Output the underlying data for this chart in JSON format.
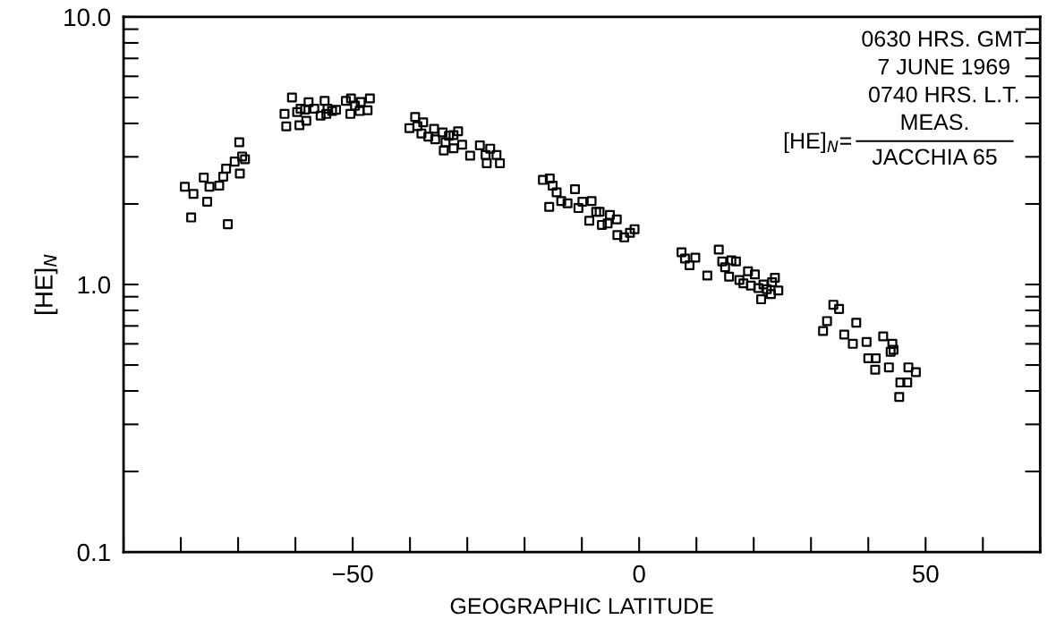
{
  "chart_data": {
    "type": "scatter",
    "xlabel": "GEOGRAPHIC LATITUDE",
    "ylabel": "[HE]$_{N}$",
    "annotations": [
      "0630 HRS. GMT",
      "7 JUNE 1969",
      "0740 HRS. L.T.",
      "[HE]$_{N}$=",
      "MEAS.",
      "JACCHIA 65"
    ],
    "log": "y",
    "grid": false,
    "marker": "square",
    "xlim": [
      -90,
      70
    ],
    "xticks": [
      {
        "value": -50,
        "label": "−50"
      },
      0,
      50
    ],
    "ylim": [
      0.1,
      10
    ],
    "yticks": [
      0.1,
      {
        "value": 1,
        "label": "1.0"
      },
      {
        "value": 10,
        "label": "10.0"
      }
    ],
    "series": [
      {
        "color": "#000000",
        "x": [
          -79.3,
          -77.8,
          -78.2,
          -75.4,
          -76.0,
          -75.0,
          -73.3,
          -72.6,
          -72.1,
          -71.8,
          -70.6,
          -69.7,
          -69.8,
          -69.3,
          -68.8,
          -61.9,
          -61.6,
          -60.6,
          -59.7,
          -59.3,
          -59.1,
          -58.1,
          -58.3,
          -57.7,
          -56.7,
          -55.6,
          -54.9,
          -54.6,
          -54.4,
          -53.6,
          -52.9,
          -51.2,
          -50.3,
          -50.4,
          -49.6,
          -48.6,
          -48.8,
          -47.4,
          -47.0,
          -39.1,
          -40.1,
          -38.7,
          -37.7,
          -38.0,
          -36.8,
          -35.8,
          -35.6,
          -34.3,
          -33.8,
          -34.1,
          -33.2,
          -32.4,
          -32.4,
          -31.6,
          -30.9,
          -29.5,
          -27.8,
          -26.8,
          -26.0,
          -26.6,
          -24.9,
          -24.3,
          -16.8,
          -15.6,
          -15.1,
          -14.4,
          -15.7,
          -13.6,
          -12.5,
          -11.2,
          -10.6,
          -9.9,
          -8.3,
          -8.7,
          -7.5,
          -6.9,
          -6.5,
          -5.5,
          -5.1,
          -3.9,
          -3.8,
          -2.6,
          -1.6,
          -0.8,
          7.4,
          8.0,
          8.8,
          9.8,
          11.9,
          13.9,
          14.5,
          15.0,
          16.1,
          16.9,
          15.7,
          17.5,
          18.2,
          19.0,
          20.2,
          19.5,
          20.8,
          21.7,
          21.3,
          22.3,
          23.0,
          23.2,
          23.7,
          24.3,
          33.9,
          34.9,
          32.8,
          32.1,
          35.8,
          37.3,
          37.9,
          39.7,
          42.6,
          40.0,
          41.3,
          41.2,
          44.2,
          44.4,
          43.6,
          43.9,
          45.6,
          45.4,
          46.8,
          47.0,
          48.3
        ],
        "values": [
          2.32,
          2.18,
          1.78,
          2.04,
          2.51,
          2.32,
          2.34,
          2.53,
          2.71,
          1.68,
          2.88,
          2.6,
          3.4,
          3.01,
          2.94,
          4.34,
          3.9,
          5.0,
          4.41,
          3.94,
          4.54,
          4.09,
          4.51,
          4.8,
          4.54,
          4.28,
          4.86,
          4.34,
          4.54,
          4.45,
          4.5,
          4.86,
          4.96,
          4.34,
          4.66,
          4.81,
          4.45,
          4.48,
          4.96,
          4.23,
          3.84,
          3.91,
          4.04,
          3.67,
          3.57,
          3.82,
          3.49,
          3.7,
          3.4,
          3.17,
          3.6,
          3.23,
          3.62,
          3.74,
          3.33,
          3.03,
          3.31,
          3.05,
          3.22,
          2.84,
          3.05,
          2.84,
          2.46,
          2.49,
          2.34,
          2.21,
          1.95,
          2.05,
          2.01,
          2.27,
          1.93,
          2.04,
          2.05,
          1.73,
          1.87,
          1.87,
          1.67,
          1.69,
          1.82,
          1.75,
          1.53,
          1.5,
          1.56,
          1.61,
          1.32,
          1.25,
          1.18,
          1.26,
          1.08,
          1.35,
          1.22,
          1.16,
          1.23,
          1.22,
          1.07,
          1.04,
          1.01,
          1.12,
          1.09,
          0.99,
          0.97,
          1.0,
          0.88,
          0.96,
          0.92,
          1.02,
          1.06,
          0.95,
          0.84,
          0.81,
          0.73,
          0.67,
          0.65,
          0.6,
          0.72,
          0.61,
          0.64,
          0.53,
          0.53,
          0.48,
          0.6,
          0.57,
          0.49,
          0.56,
          0.43,
          0.38,
          0.43,
          0.49,
          0.47
        ]
      }
    ]
  }
}
